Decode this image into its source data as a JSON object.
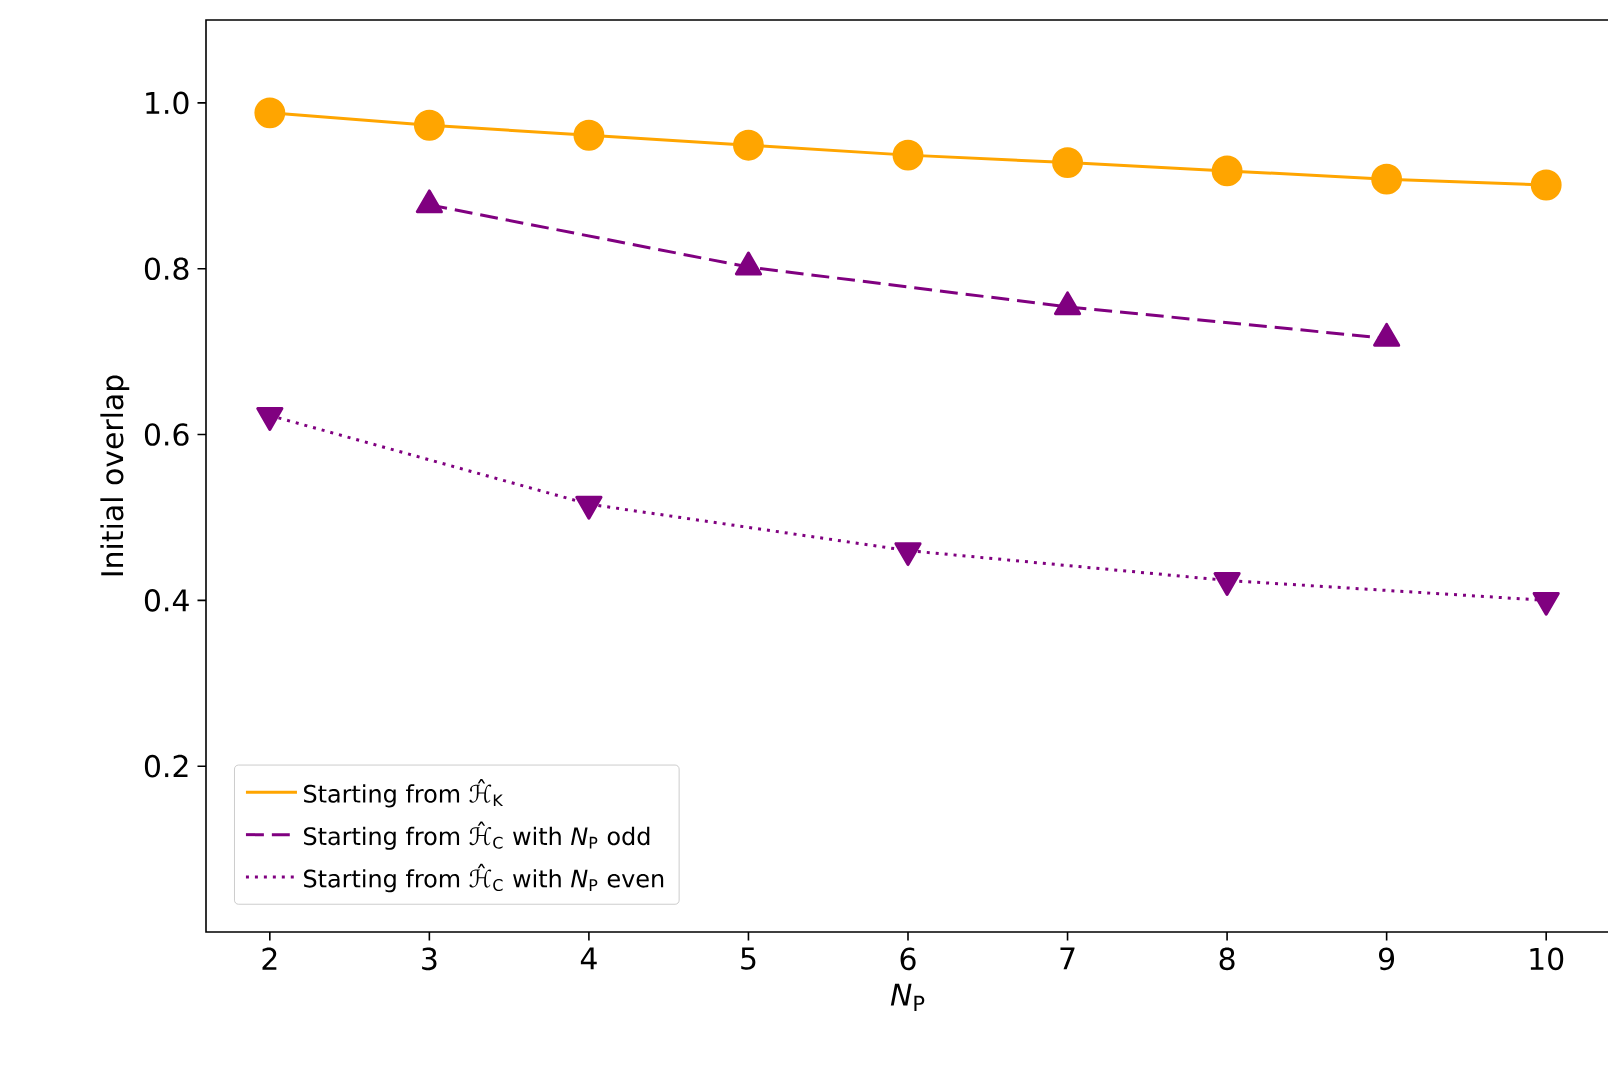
{
  "chart_data": {
    "type": "line",
    "xlabel": "*N*$_{P}$",
    "ylabel": "Initial overlap",
    "xlim": [
      1.6,
      10.4
    ],
    "ylim": [
      0,
      1.1
    ],
    "xticks": [
      2,
      3,
      4,
      5,
      6,
      7,
      8,
      9,
      10
    ],
    "yticks": [
      0.2,
      0.4,
      0.6,
      0.8,
      {
        "value": 1.0,
        "label": "1.0"
      }
    ],
    "legend": "bottom left",
    "grid": false,
    "series": [
      {
        "name": "Starting from ℋ̂$_{K}$",
        "color": "#ffa500",
        "marker": "circle",
        "line_style": "solid",
        "x": [
          2,
          3,
          4,
          5,
          6,
          7,
          8,
          9,
          10
        ],
        "values": [
          0.988,
          0.973,
          0.961,
          0.949,
          0.937,
          0.928,
          0.918,
          0.908,
          0.901
        ]
      },
      {
        "name": "Starting from ℋ̂$_{C}$ with *N*$_{P}$ odd",
        "color": "#800080",
        "marker": "triangle",
        "line_style": "dashed",
        "x": [
          3,
          5,
          7,
          9
        ],
        "values": [
          0.877,
          0.802,
          0.754,
          0.716
        ]
      },
      {
        "name": "Starting from ℋ̂$_{C}$ with *N*$_{P}$ even",
        "color": "#800080",
        "marker": "triangle-down",
        "line_style": "dotted",
        "x": [
          2,
          4,
          6,
          8,
          10
        ],
        "values": [
          0.623,
          0.516,
          0.46,
          0.424,
          0.4
        ]
      }
    ]
  }
}
